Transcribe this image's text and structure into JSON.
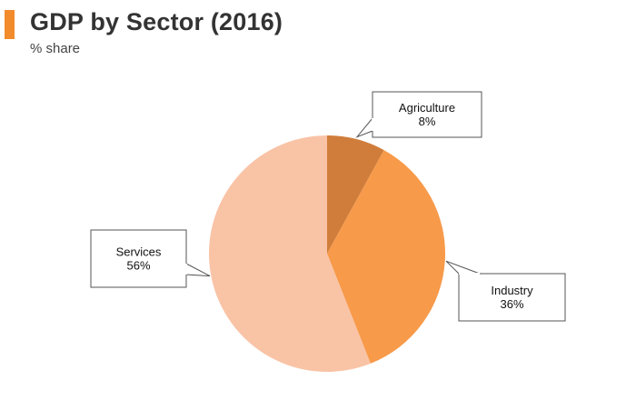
{
  "header": {
    "title": "GDP by Sector (2016)",
    "subtitle": "% share",
    "accent_color": "#f28b2b"
  },
  "chart_data": {
    "type": "pie",
    "title": "GDP by Sector (2016)",
    "subtitle": "% share",
    "unit": "%",
    "slices": [
      {
        "label": "Agriculture",
        "value": 8,
        "value_label": "8%",
        "color": "#d07d3b"
      },
      {
        "label": "Industry",
        "value": 36,
        "value_label": "36%",
        "color": "#f79a4a"
      },
      {
        "label": "Services",
        "value": 56,
        "value_label": "56%",
        "color": "#f9c3a6"
      }
    ],
    "start_angle": "12 o'clock",
    "direction": "clockwise",
    "labels": "callouts"
  }
}
